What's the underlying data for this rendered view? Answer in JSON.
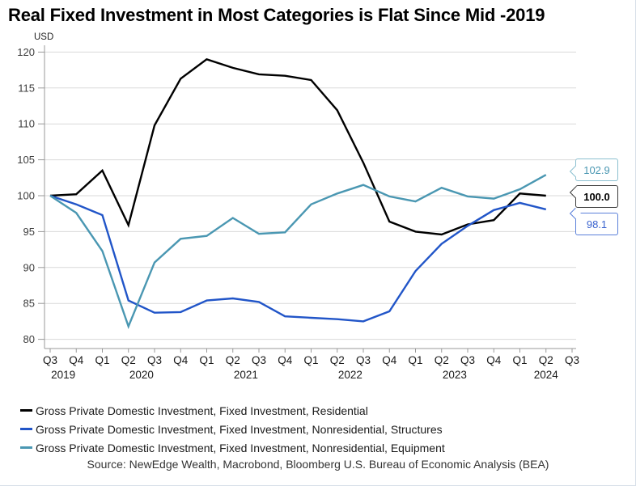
{
  "title": "Real Fixed Investment in Most Categories is Flat Since Mid -2019",
  "y_axis_unit": "USD",
  "source": "Source: NewEdge Wealth, Macrobond, Bloomberg U.S. Bureau of Economic Analysis (BEA)",
  "colors": {
    "residential": "#000000",
    "structures": "#2155c8",
    "equipment": "#4a97b2",
    "gridline": "#d9d9d9",
    "axis": "#999999"
  },
  "chart_data": {
    "type": "line",
    "title": "Real Fixed Investment in Most Categories is Flat Since Mid -2019",
    "ylabel": "USD",
    "ylim": [
      80,
      120
    ],
    "ytick_step": 5,
    "grid": true,
    "legend_position": "bottom",
    "y_tick_labels": [
      "80",
      "85",
      "90",
      "95",
      "100",
      "105",
      "110",
      "115",
      "120"
    ],
    "x_tick_labels": [
      "Q3",
      "Q4",
      "Q1",
      "Q2",
      "Q3",
      "Q4",
      "Q1",
      "Q2",
      "Q3",
      "Q4",
      "Q1",
      "Q2",
      "Q3",
      "Q4",
      "Q1",
      "Q2",
      "Q3",
      "Q4",
      "Q1",
      "Q2",
      "Q3"
    ],
    "year_labels": [
      {
        "label": "2019",
        "ticks": [
          0,
          1
        ]
      },
      {
        "label": "2020",
        "ticks": [
          2,
          5
        ]
      },
      {
        "label": "2021",
        "ticks": [
          6,
          9
        ]
      },
      {
        "label": "2022",
        "ticks": [
          10,
          13
        ]
      },
      {
        "label": "2023",
        "ticks": [
          14,
          17
        ]
      },
      {
        "label": "2024",
        "ticks": [
          18,
          20
        ]
      }
    ],
    "categories": [
      "Q3 2019",
      "Q4 2019",
      "Q1 2020",
      "Q2 2020",
      "Q3 2020",
      "Q4 2020",
      "Q1 2021",
      "Q2 2021",
      "Q3 2021",
      "Q4 2021",
      "Q1 2022",
      "Q2 2022",
      "Q3 2022",
      "Q4 2022",
      "Q1 2023",
      "Q2 2023",
      "Q3 2023",
      "Q4 2023",
      "Q1 2024",
      "Q2 2024"
    ],
    "series": [
      {
        "key": "residential",
        "name": "Gross Private Domestic Investment, Fixed Investment, Residential",
        "color": "#000000",
        "end_label": "100.0",
        "values": [
          100.0,
          100.2,
          103.5,
          95.9,
          109.8,
          116.3,
          119.0,
          117.8,
          116.9,
          116.7,
          116.1,
          111.9,
          104.6,
          96.4,
          95.0,
          94.6,
          96.0,
          96.6,
          100.3,
          100.0
        ]
      },
      {
        "key": "structures",
        "name": "Gross Private Domestic Investment, Fixed Investment, Nonresidential, Structures",
        "color": "#2155c8",
        "end_label": "98.1",
        "values": [
          100.0,
          98.8,
          97.3,
          85.4,
          83.7,
          83.8,
          85.4,
          85.7,
          85.2,
          83.2,
          83.0,
          82.8,
          82.5,
          83.9,
          89.5,
          93.3,
          95.8,
          98.0,
          99.0,
          98.1
        ]
      },
      {
        "key": "equipment",
        "name": "Gross Private Domestic Investment, Fixed Investment, Nonresidential, Equipment",
        "color": "#4a97b2",
        "end_label": "102.9",
        "values": [
          100.0,
          97.6,
          92.3,
          81.8,
          90.7,
          94.0,
          94.4,
          96.9,
          94.7,
          94.9,
          98.8,
          100.3,
          101.5,
          99.9,
          99.2,
          101.1,
          99.9,
          99.6,
          100.9,
          102.9
        ]
      }
    ]
  },
  "callouts": [
    {
      "value": "102.9",
      "text_color": "#4a97b2",
      "border_color": "#8cc0d0",
      "bold": false
    },
    {
      "value": "100.0",
      "text_color": "#000000",
      "border_color": "#3d3d3d",
      "bold": true
    },
    {
      "value": "98.1",
      "text_color": "#3a63cf",
      "border_color": "#5b81da",
      "bold": false
    }
  ]
}
